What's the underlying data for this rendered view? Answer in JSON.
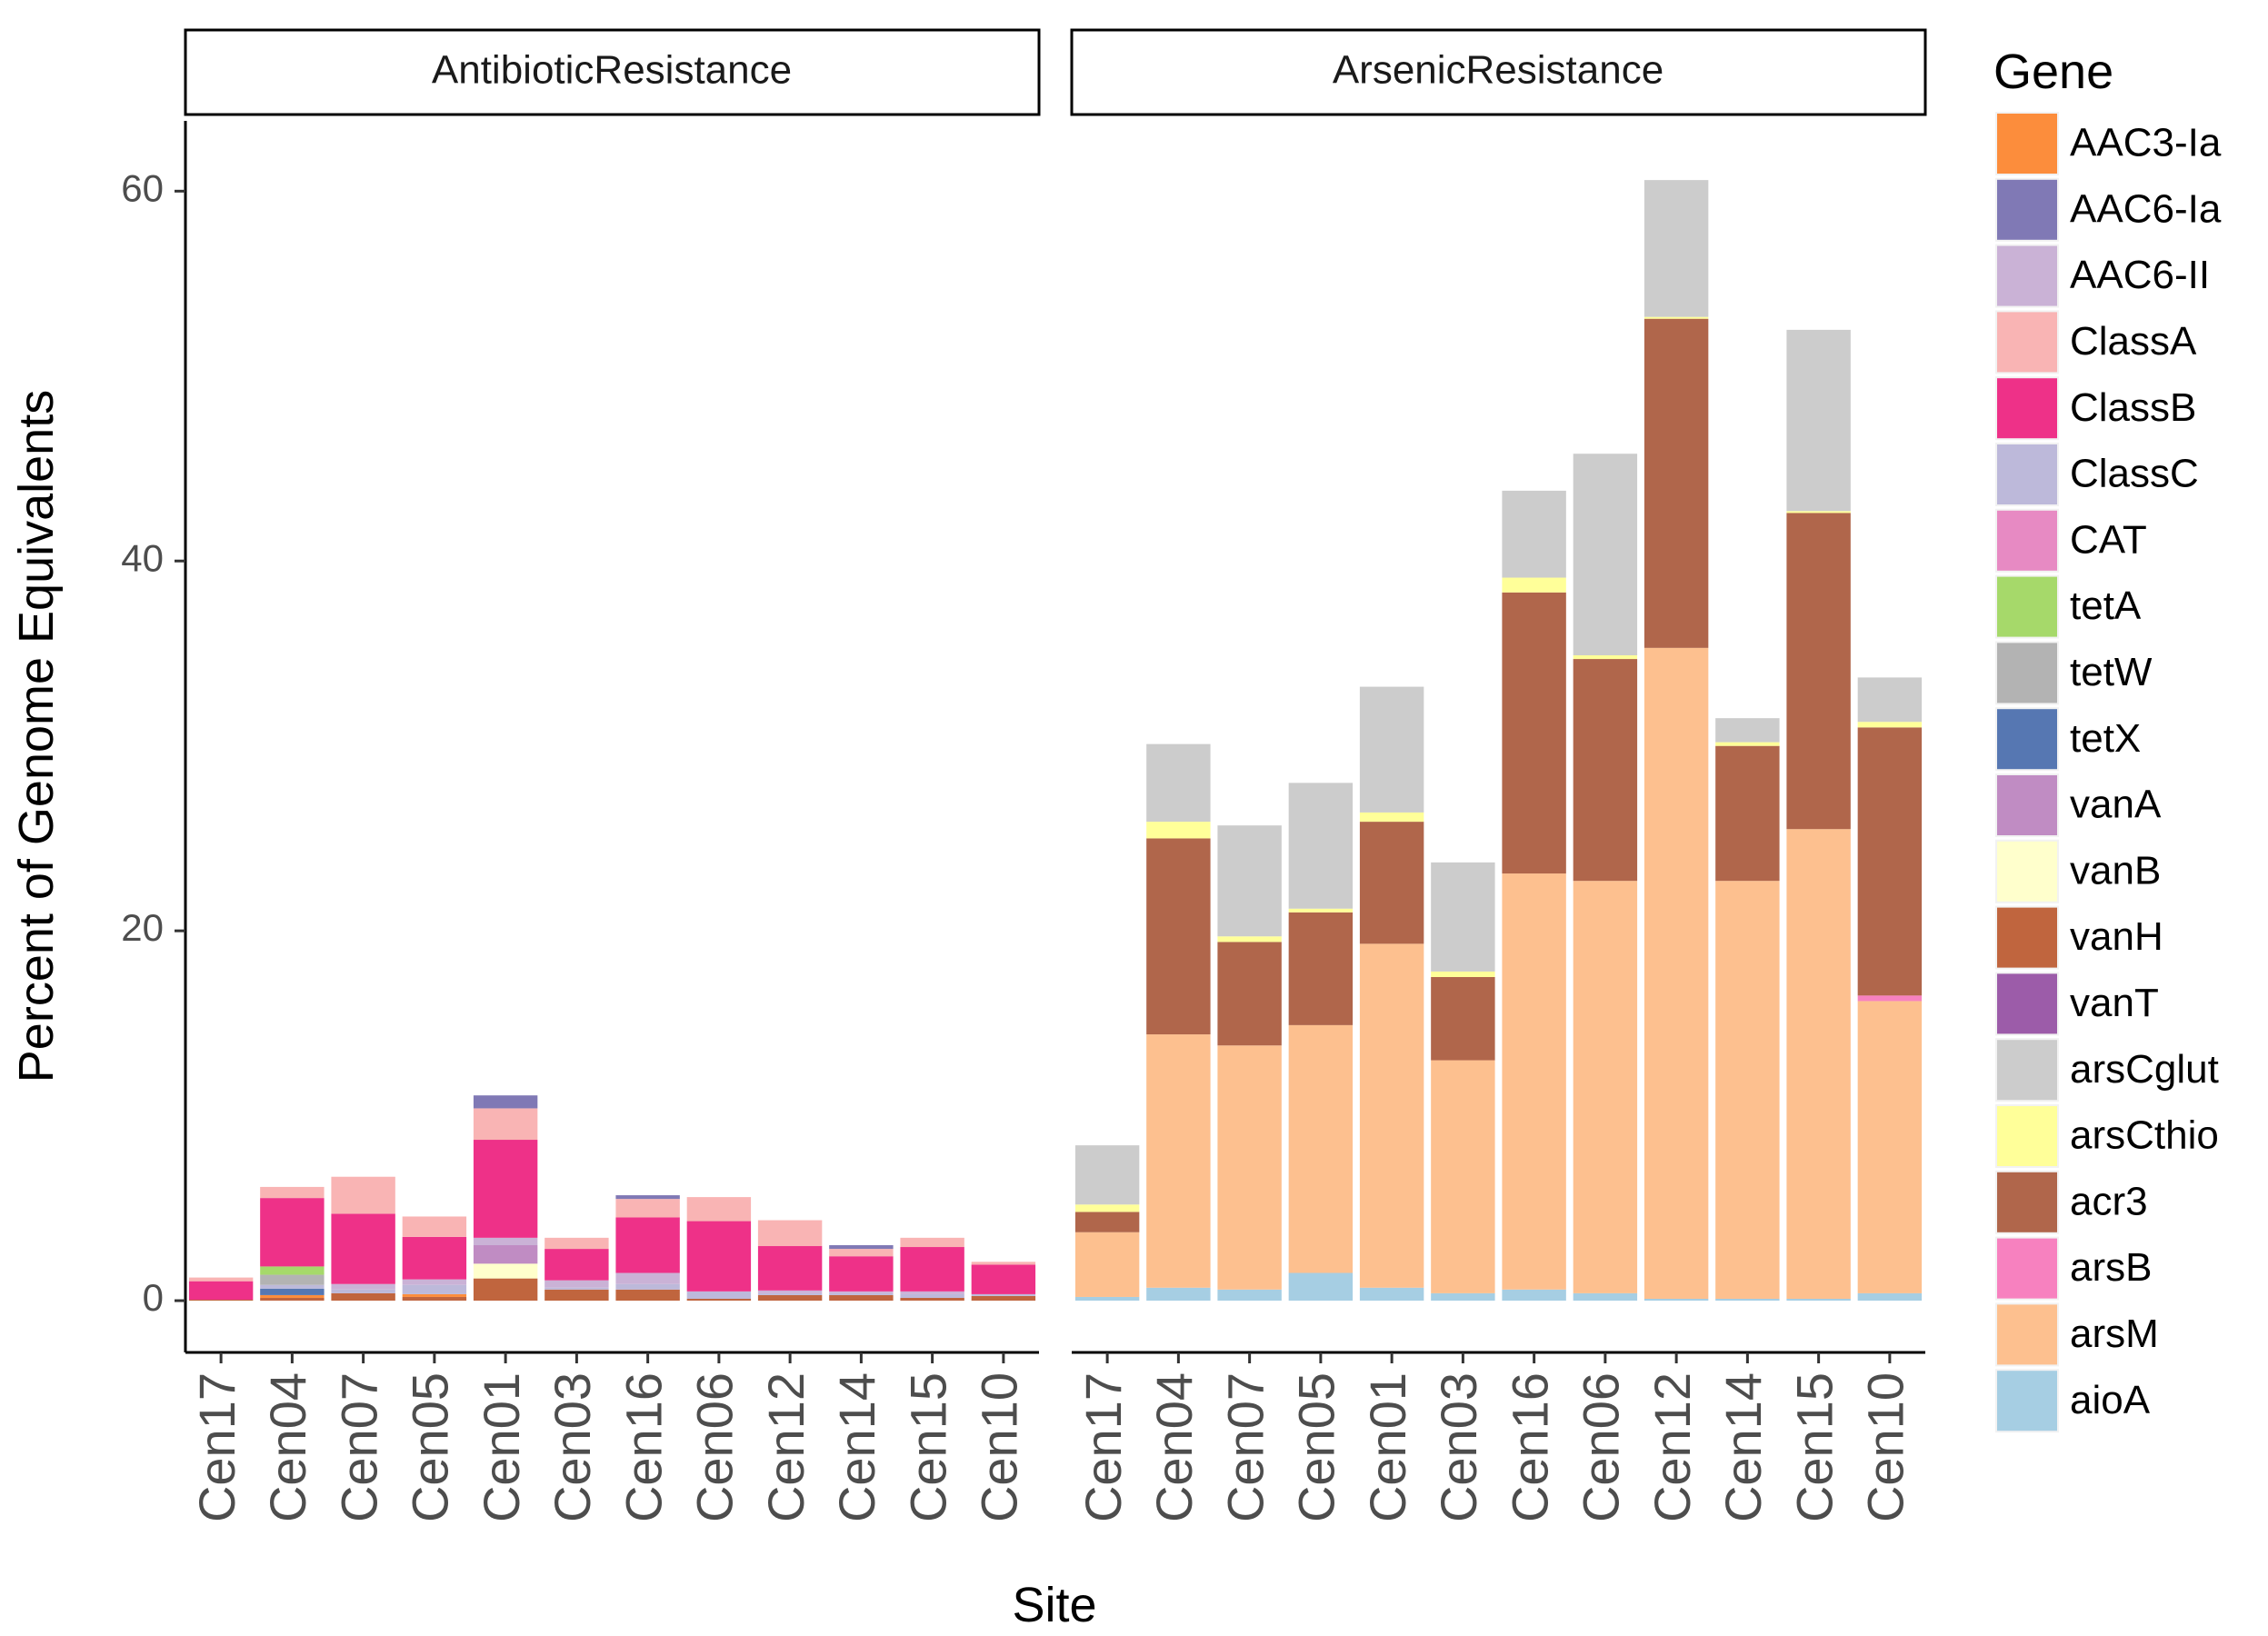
{
  "chart_data": {
    "type": "bar",
    "stacked": true,
    "xlabel": "Site",
    "ylabel": "Percent of Genome Equivalents",
    "ylim": [
      -2.8,
      63.8
    ],
    "yticks": [
      0,
      20,
      40,
      60
    ],
    "legend": {
      "title": "Gene",
      "position": "right"
    },
    "categories": [
      "Cen17",
      "Cen04",
      "Cen07",
      "Cen05",
      "Cen01",
      "Cen03",
      "Cen16",
      "Cen06",
      "Cen12",
      "Cen14",
      "Cen15",
      "Cen10"
    ],
    "genes": [
      {
        "name": "AAC3-Ia",
        "color": "#FC8D3C"
      },
      {
        "name": "AAC6-Ia",
        "color": "#8079B5"
      },
      {
        "name": "AAC6-II",
        "color": "#CAB2D6"
      },
      {
        "name": "ClassA",
        "color": "#F9B4B4"
      },
      {
        "name": "ClassB",
        "color": "#EE3188"
      },
      {
        "name": "ClassC",
        "color": "#BDB9DA"
      },
      {
        "name": "CAT",
        "color": "#E78AC3"
      },
      {
        "name": "tetA",
        "color": "#A6D96A"
      },
      {
        "name": "tetW",
        "color": "#B3B3B3"
      },
      {
        "name": "tetX",
        "color": "#5677B2"
      },
      {
        "name": "vanA",
        "color": "#C08CC3"
      },
      {
        "name": "vanB",
        "color": "#FFFFCC"
      },
      {
        "name": "vanH",
        "color": "#C0653E"
      },
      {
        "name": "vanT",
        "color": "#9C5CA9"
      },
      {
        "name": "arsCglut",
        "color": "#CCCCCC"
      },
      {
        "name": "arsCthio",
        "color": "#FFFF99"
      },
      {
        "name": "acr3",
        "color": "#B0664B"
      },
      {
        "name": "arsB",
        "color": "#F781BF"
      },
      {
        "name": "arsM",
        "color": "#FDC08F"
      },
      {
        "name": "aioA",
        "color": "#A6CEE3"
      }
    ],
    "panels": [
      {
        "title": "AntibioticResistance",
        "series": [
          {
            "name": "vanH",
            "values": [
              0.05,
              0.15,
              0.4,
              0.2,
              1.2,
              0.6,
              0.6,
              0.1,
              0.3,
              0.3,
              0.15,
              0.25
            ]
          },
          {
            "name": "AAC3-Ia",
            "values": [
              0.0,
              0.15,
              0.0,
              0.15,
              0.0,
              0.0,
              0.0,
              0.0,
              0.0,
              0.0,
              0.0,
              0.0
            ]
          },
          {
            "name": "tetX",
            "values": [
              0.0,
              0.35,
              0.0,
              0.0,
              0.0,
              0.0,
              0.0,
              0.0,
              0.0,
              0.0,
              0.0,
              0.0
            ]
          },
          {
            "name": "ClassC",
            "values": [
              0.0,
              0.2,
              0.2,
              0.5,
              0.0,
              0.1,
              0.3,
              0.4,
              0.1,
              0.1,
              0.2,
              0.1
            ]
          },
          {
            "name": "vanB",
            "values": [
              0.0,
              0.0,
              0.0,
              0.0,
              0.8,
              0.0,
              0.0,
              0.0,
              0.0,
              0.0,
              0.0,
              0.0
            ]
          },
          {
            "name": "tetW",
            "values": [
              0.0,
              0.55,
              0.0,
              0.0,
              0.0,
              0.0,
              0.0,
              0.0,
              0.0,
              0.0,
              0.0,
              0.0
            ]
          },
          {
            "name": "tetA",
            "values": [
              0.0,
              0.45,
              0.0,
              0.0,
              0.0,
              0.0,
              0.0,
              0.0,
              0.0,
              0.0,
              0.0,
              0.0
            ]
          },
          {
            "name": "vanA",
            "values": [
              0.0,
              0.0,
              0.0,
              0.0,
              1.0,
              0.0,
              0.0,
              0.0,
              0.0,
              0.0,
              0.0,
              0.0
            ]
          },
          {
            "name": "AAC6-II",
            "values": [
              0.0,
              0.0,
              0.3,
              0.3,
              0.4,
              0.4,
              0.6,
              0.0,
              0.15,
              0.1,
              0.15,
              0.0
            ]
          },
          {
            "name": "ClassB",
            "values": [
              1.0,
              3.7,
              3.8,
              2.3,
              5.3,
              1.7,
              3.0,
              3.8,
              2.4,
              1.9,
              2.4,
              1.6
            ]
          },
          {
            "name": "ClassA",
            "values": [
              0.2,
              0.6,
              2.0,
              1.1,
              1.7,
              0.6,
              1.0,
              1.3,
              1.4,
              0.4,
              0.5,
              0.15
            ]
          },
          {
            "name": "AAC6-Ia",
            "values": [
              0.0,
              0.0,
              0.0,
              0.0,
              0.7,
              0.0,
              0.2,
              0.0,
              0.0,
              0.2,
              0.0,
              0.0
            ]
          }
        ]
      },
      {
        "title": "ArsenicResistance",
        "series": [
          {
            "name": "aioA",
            "values": [
              0.2,
              0.7,
              0.6,
              1.5,
              0.7,
              0.4,
              0.6,
              0.4,
              0.1,
              0.1,
              0.1,
              0.4
            ]
          },
          {
            "name": "arsM",
            "values": [
              3.5,
              13.7,
              13.2,
              13.4,
              18.6,
              12.6,
              22.5,
              22.3,
              35.2,
              22.6,
              25.4,
              15.8
            ]
          },
          {
            "name": "arsB",
            "values": [
              0.0,
              0.0,
              0.0,
              0.0,
              0.0,
              0.0,
              0.0,
              0.0,
              0.0,
              0.0,
              0.0,
              0.3
            ]
          },
          {
            "name": "acr3",
            "values": [
              1.1,
              10.6,
              5.6,
              6.1,
              6.6,
              4.5,
              15.2,
              12.0,
              17.8,
              7.3,
              17.1,
              14.5
            ]
          },
          {
            "name": "arsCthio",
            "values": [
              0.4,
              0.9,
              0.3,
              0.2,
              0.5,
              0.3,
              0.8,
              0.2,
              0.1,
              0.2,
              0.1,
              0.3
            ]
          },
          {
            "name": "arsCglut",
            "values": [
              3.2,
              4.2,
              6.0,
              6.8,
              6.8,
              5.9,
              4.7,
              10.9,
              7.4,
              1.3,
              9.8,
              2.4
            ]
          }
        ]
      }
    ]
  }
}
